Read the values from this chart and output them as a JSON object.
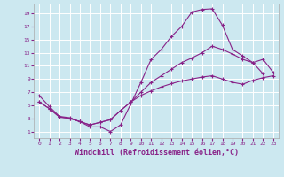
{
  "background_color": "#cce8f0",
  "grid_color": "#ffffff",
  "line_color": "#882288",
  "xlabel": "Windchill (Refroidissement éolien,°C)",
  "xticks": [
    0,
    1,
    2,
    3,
    4,
    5,
    6,
    7,
    8,
    9,
    10,
    11,
    12,
    13,
    14,
    15,
    16,
    17,
    18,
    19,
    20,
    21,
    22,
    23
  ],
  "yticks": [
    1,
    3,
    5,
    7,
    9,
    11,
    13,
    15,
    17,
    19
  ],
  "xlim": [
    -0.5,
    23.5
  ],
  "ylim": [
    0.0,
    20.5
  ],
  "line1_x": [
    0,
    1,
    2,
    3,
    4,
    5,
    6,
    7,
    8,
    9,
    10,
    11,
    12,
    13,
    14,
    15,
    16,
    17,
    18,
    19,
    20,
    21,
    22
  ],
  "line1_y": [
    6.5,
    4.8,
    3.3,
    3.1,
    2.5,
    1.7,
    1.7,
    1.0,
    2.0,
    5.2,
    8.5,
    12.0,
    13.5,
    15.5,
    17.0,
    19.2,
    19.6,
    19.7,
    17.2,
    13.5,
    12.5,
    11.5,
    9.8
  ],
  "line2_x": [
    0,
    1,
    2,
    3,
    4,
    5,
    6,
    7,
    8,
    9,
    10,
    11,
    12,
    13,
    14,
    15,
    16,
    17,
    18,
    19,
    20,
    21,
    22,
    23
  ],
  "line2_y": [
    5.5,
    4.5,
    3.2,
    3.0,
    2.5,
    2.0,
    2.4,
    2.8,
    4.2,
    5.5,
    7.0,
    8.5,
    9.5,
    10.5,
    11.5,
    12.2,
    13.0,
    14.0,
    13.5,
    12.8,
    12.0,
    11.5,
    12.0,
    10.0
  ],
  "line3_x": [
    0,
    1,
    2,
    3,
    4,
    5,
    6,
    7,
    8,
    9,
    10,
    11,
    12,
    13,
    14,
    15,
    16,
    17,
    18,
    19,
    20,
    21,
    22,
    23
  ],
  "line3_y": [
    5.5,
    4.5,
    3.2,
    3.0,
    2.5,
    2.0,
    2.4,
    2.8,
    4.2,
    5.5,
    6.5,
    7.2,
    7.8,
    8.3,
    8.7,
    9.0,
    9.3,
    9.5,
    9.0,
    8.5,
    8.2,
    8.8,
    9.2,
    9.5
  ]
}
